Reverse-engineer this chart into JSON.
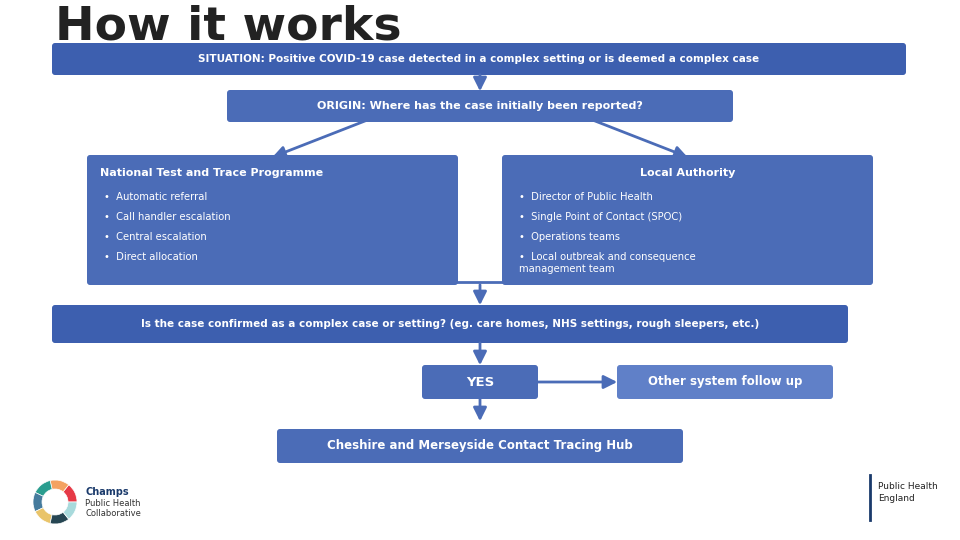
{
  "title": "How it works",
  "title_fontsize": 34,
  "bg_color": "#ffffff",
  "box_blue_dark": "#3D5FAF",
  "box_blue_mid": "#4B6CB7",
  "box_blue_light": "#6080C8",
  "text_white": "#ffffff",
  "text_dark": "#222222",
  "arrow_color": "#4B6CB7",
  "situation_text": "SITUATION: Positive COVID-19 case detected in a complex setting or is deemed a complex case",
  "origin_text": "ORIGIN: Where has the case initially been reported?",
  "ntt_title": "National Test and Trace Programme",
  "ntt_bullets": [
    "Automatic referral",
    "Call handler escalation",
    "Central escalation",
    "Direct allocation"
  ],
  "la_title": "Local Authority",
  "la_bullets": [
    "Director of Public Health",
    "Single Point of Contact (SPOC)",
    "Operations teams",
    "Local outbreak and consequence\nmanagement team"
  ],
  "confirm_text": "Is the case confirmed as a complex case or setting? (eg. care homes, NHS settings, rough sleepers, etc.)",
  "yes_text": "YES",
  "other_text": "Other system follow up",
  "hub_text": "Cheshire and Merseyside Contact Tracing Hub"
}
